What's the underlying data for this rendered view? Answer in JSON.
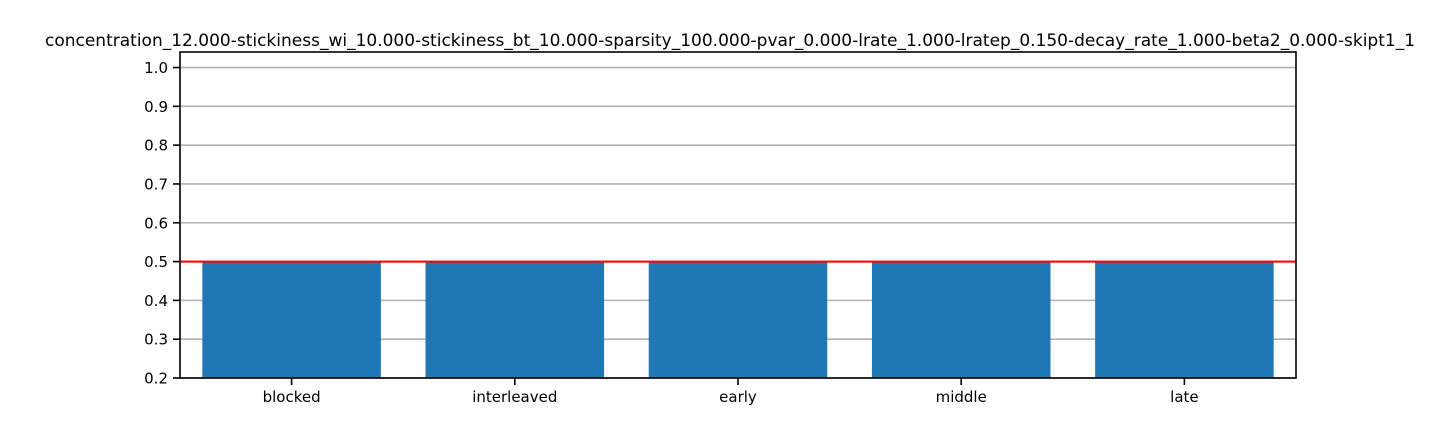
{
  "chart_data": {
    "type": "bar",
    "title": "concentration_12.000-stickiness_wi_10.000-stickiness_bt_10.000-sparsity_100.000-pvar_0.000-lrate_1.000-lratep_0.150-decay_rate_1.000-beta2_0.000-skipt1_1",
    "xlabel": "",
    "ylabel": "",
    "categories": [
      "blocked",
      "interleaved",
      "early",
      "middle",
      "late"
    ],
    "values": [
      0.5,
      0.5,
      0.5,
      0.5,
      0.5
    ],
    "ylim": [
      0.2,
      1.04
    ],
    "yticks": [
      0.2,
      0.3,
      0.4,
      0.5,
      0.6,
      0.7,
      0.8,
      0.9,
      1.0
    ],
    "ytick_labels": [
      "0.2",
      "0.3",
      "0.4",
      "0.5",
      "0.6",
      "0.7",
      "0.8",
      "0.9",
      "1.0"
    ],
    "reference_line": 0.5,
    "grid": "y",
    "colors": {
      "bar": "#1f77b4",
      "reference_line": "#ff0000",
      "grid": "#b0b0b0",
      "axes": "#000000"
    }
  }
}
